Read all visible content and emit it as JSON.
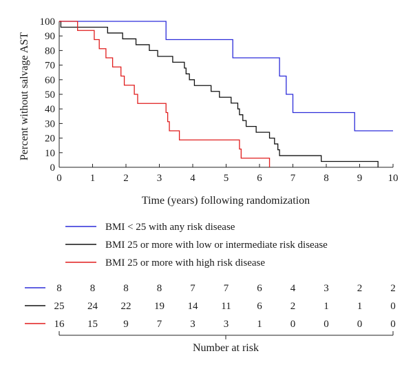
{
  "chart_data": {
    "type": "line",
    "subtype": "kaplan-meier-step",
    "title": "",
    "xlabel": "Time (years) following randomization",
    "ylabel": "Percent without salvage AST",
    "xlim": [
      0,
      10
    ],
    "ylim": [
      0,
      100
    ],
    "x_ticks": [
      "0",
      "1",
      "2",
      "3",
      "4",
      "5",
      "6",
      "7",
      "8",
      "9",
      "10"
    ],
    "y_ticks": [
      "0",
      "10",
      "20",
      "30",
      "40",
      "50",
      "60",
      "70",
      "80",
      "90",
      "100"
    ],
    "grid": false,
    "legend_position": "below-plot",
    "series": [
      {
        "name": "BMI < 25 with any risk disease",
        "color": "#2b2bd9",
        "points": [
          [
            0,
            100
          ],
          [
            3.2,
            100
          ],
          [
            3.2,
            87.5
          ],
          [
            5.2,
            87.5
          ],
          [
            5.2,
            75
          ],
          [
            6.6,
            75
          ],
          [
            6.6,
            62.5
          ],
          [
            6.8,
            62.5
          ],
          [
            6.8,
            50
          ],
          [
            7.0,
            50
          ],
          [
            7.0,
            37.5
          ],
          [
            8.85,
            37.5
          ],
          [
            8.85,
            25
          ],
          [
            10,
            25
          ]
        ]
      },
      {
        "name": "BMI 25 or more with low or intermediate risk disease",
        "color": "#111111",
        "points": [
          [
            0,
            100
          ],
          [
            0.05,
            100
          ],
          [
            0.05,
            96
          ],
          [
            1.45,
            96
          ],
          [
            1.45,
            92
          ],
          [
            1.9,
            92
          ],
          [
            1.9,
            88
          ],
          [
            2.3,
            88
          ],
          [
            2.3,
            84
          ],
          [
            2.7,
            84
          ],
          [
            2.7,
            80
          ],
          [
            2.95,
            80
          ],
          [
            2.95,
            76
          ],
          [
            3.4,
            76
          ],
          [
            3.4,
            72
          ],
          [
            3.75,
            72
          ],
          [
            3.75,
            68
          ],
          [
            3.8,
            68
          ],
          [
            3.8,
            64
          ],
          [
            3.9,
            64
          ],
          [
            3.9,
            60
          ],
          [
            4.05,
            60
          ],
          [
            4.05,
            56
          ],
          [
            4.55,
            56
          ],
          [
            4.55,
            52
          ],
          [
            4.8,
            52
          ],
          [
            4.8,
            48
          ],
          [
            5.15,
            48
          ],
          [
            5.15,
            44
          ],
          [
            5.35,
            44
          ],
          [
            5.35,
            40
          ],
          [
            5.4,
            40
          ],
          [
            5.4,
            36
          ],
          [
            5.5,
            36
          ],
          [
            5.5,
            32
          ],
          [
            5.6,
            32
          ],
          [
            5.6,
            28
          ],
          [
            5.9,
            28
          ],
          [
            5.9,
            24
          ],
          [
            6.3,
            24
          ],
          [
            6.3,
            20
          ],
          [
            6.45,
            20
          ],
          [
            6.45,
            16
          ],
          [
            6.55,
            16
          ],
          [
            6.55,
            12
          ],
          [
            6.6,
            12
          ],
          [
            6.6,
            8
          ],
          [
            7.85,
            8
          ],
          [
            7.85,
            4
          ],
          [
            9.55,
            4
          ],
          [
            9.55,
            0
          ]
        ]
      },
      {
        "name": "BMI 25 or more with high risk disease",
        "color": "#e01b1b",
        "points": [
          [
            0,
            100
          ],
          [
            0.55,
            100
          ],
          [
            0.55,
            93.75
          ],
          [
            1.05,
            93.75
          ],
          [
            1.05,
            87.5
          ],
          [
            1.2,
            87.5
          ],
          [
            1.2,
            81.25
          ],
          [
            1.4,
            81.25
          ],
          [
            1.4,
            75
          ],
          [
            1.6,
            75
          ],
          [
            1.6,
            68.75
          ],
          [
            1.85,
            68.75
          ],
          [
            1.85,
            62.5
          ],
          [
            1.95,
            62.5
          ],
          [
            1.95,
            56.25
          ],
          [
            2.25,
            56.25
          ],
          [
            2.25,
            50
          ],
          [
            2.35,
            50
          ],
          [
            2.35,
            43.75
          ],
          [
            3.2,
            43.75
          ],
          [
            3.2,
            37.5
          ],
          [
            3.25,
            37.5
          ],
          [
            3.25,
            31.25
          ],
          [
            3.3,
            31.25
          ],
          [
            3.3,
            25
          ],
          [
            3.6,
            25
          ],
          [
            3.6,
            18.75
          ],
          [
            5.4,
            18.75
          ],
          [
            5.4,
            12.5
          ],
          [
            5.45,
            12.5
          ],
          [
            5.45,
            6.25
          ],
          [
            6.3,
            6.25
          ],
          [
            6.3,
            0
          ]
        ]
      }
    ],
    "number_at_risk": {
      "label": "Number at risk",
      "times": [
        0,
        1,
        2,
        3,
        4,
        5,
        6,
        7,
        8,
        9,
        10
      ],
      "rows": [
        {
          "color": "#2b2bd9",
          "values": [
            "8",
            "8",
            "8",
            "8",
            "7",
            "7",
            "6",
            "4",
            "3",
            "2",
            "2"
          ]
        },
        {
          "color": "#111111",
          "values": [
            "25",
            "24",
            "22",
            "19",
            "14",
            "11",
            "6",
            "2",
            "1",
            "1",
            "0"
          ]
        },
        {
          "color": "#e01b1b",
          "values": [
            "16",
            "15",
            "9",
            "7",
            "3",
            "3",
            "1",
            "0",
            "0",
            "0",
            "0"
          ]
        }
      ]
    }
  }
}
